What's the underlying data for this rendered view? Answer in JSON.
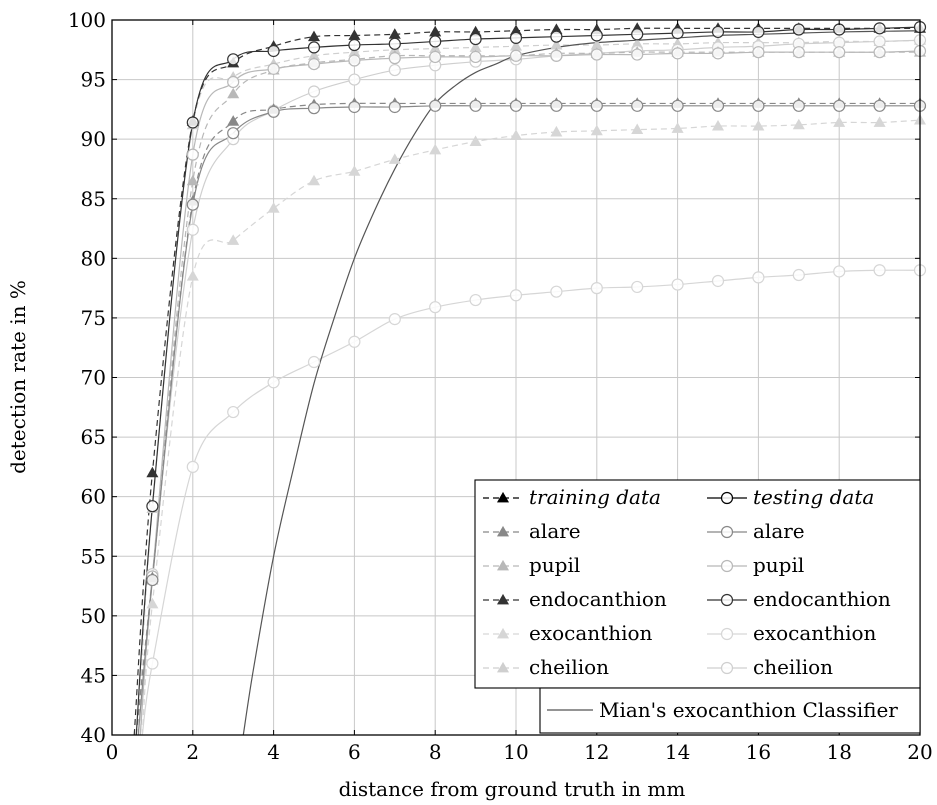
{
  "chart_data": {
    "type": "line",
    "title": "",
    "xlabel": "distance from ground truth in mm",
    "ylabel": "detection rate in %",
    "xlim": [
      0,
      20
    ],
    "ylim": [
      40,
      100
    ],
    "x_ticks": [
      0,
      2,
      4,
      6,
      8,
      10,
      12,
      14,
      16,
      18,
      20
    ],
    "y_ticks": [
      40,
      45,
      50,
      55,
      60,
      65,
      70,
      75,
      80,
      85,
      90,
      95,
      100
    ],
    "grid": true,
    "legend_position": "bottom-right",
    "legend_headers": {
      "training": "training data",
      "testing": "testing data"
    },
    "colors": {
      "endocanthion": "#333333",
      "alare": "#888888",
      "pupil": "#b8b8b8",
      "exocanthion": "#d6d6d6",
      "cheilion": "#cfcfcf",
      "mian": "#555555"
    },
    "series": [
      {
        "name": "alare",
        "group": "training",
        "style": "dashed",
        "marker": "triangle",
        "color_key": "alare",
        "x": [
          0.6,
          1,
          2,
          3,
          4,
          5,
          6,
          7,
          8,
          9,
          10,
          11,
          12,
          13,
          14,
          15,
          16,
          17,
          18,
          19,
          20
        ],
        "y": [
          40,
          53.2,
          84.8,
          91.5,
          92.5,
          92.9,
          93.0,
          93.0,
          93.0,
          93.0,
          93.0,
          93.0,
          93.0,
          93.0,
          93.0,
          93.0,
          93.0,
          93.0,
          93.0,
          93.0,
          93.0
        ]
      },
      {
        "name": "pupil",
        "group": "training",
        "style": "dashed",
        "marker": "triangle",
        "color_key": "pupil",
        "x": [
          0.7,
          1,
          2,
          3,
          4,
          5,
          6,
          7,
          8,
          9,
          10,
          11,
          12,
          13,
          14,
          15,
          16,
          17,
          18,
          19,
          20
        ],
        "y": [
          40,
          53.0,
          86.5,
          93.8,
          95.8,
          96.4,
          96.7,
          97.0,
          97.0,
          97.0,
          97.0,
          97.2,
          97.2,
          97.3,
          97.3,
          97.3,
          97.3,
          97.3,
          97.3,
          97.3,
          97.3
        ]
      },
      {
        "name": "endocanthion",
        "group": "training",
        "style": "dashed",
        "marker": "triangle",
        "color_key": "endocanthion",
        "x": [
          0.55,
          1,
          2,
          3,
          4,
          5,
          6,
          7,
          8,
          9,
          10,
          11,
          12,
          13,
          14,
          15,
          16,
          17,
          18,
          19,
          20
        ],
        "y": [
          40,
          62.0,
          91.5,
          96.4,
          97.8,
          98.6,
          98.7,
          98.8,
          99.0,
          99.0,
          99.1,
          99.2,
          99.2,
          99.3,
          99.3,
          99.3,
          99.3,
          99.3,
          99.3,
          99.3,
          99.3
        ]
      },
      {
        "name": "exocanthion",
        "group": "training",
        "style": "dashed",
        "marker": "triangle",
        "color_key": "exocanthion",
        "x": [
          0.75,
          1,
          2,
          3,
          4,
          5,
          6,
          7,
          8,
          9,
          10,
          11,
          12,
          13,
          14,
          15,
          16,
          17,
          18,
          19,
          20
        ],
        "y": [
          40,
          51.0,
          78.5,
          81.5,
          84.2,
          86.5,
          87.3,
          88.3,
          89.1,
          89.8,
          90.3,
          90.6,
          90.7,
          90.8,
          90.9,
          91.1,
          91.1,
          91.2,
          91.4,
          91.4,
          91.6
        ]
      },
      {
        "name": "cheilion",
        "group": "training",
        "style": "dashed",
        "marker": "triangle",
        "color_key": "cheilion",
        "x": [
          0.65,
          1,
          2,
          3,
          4,
          5,
          6,
          7,
          8,
          9,
          10,
          11,
          12,
          13,
          14,
          15,
          16,
          17,
          18,
          19,
          20
        ],
        "y": [
          40,
          59.0,
          91.2,
          95.2,
          96.3,
          97.0,
          97.3,
          97.5,
          97.6,
          97.7,
          97.8,
          97.9,
          97.9,
          98.0,
          98.0,
          98.1,
          98.1,
          98.1,
          98.2,
          98.2,
          98.3
        ]
      },
      {
        "name": "alare",
        "group": "testing",
        "style": "solid",
        "marker": "circle",
        "color_key": "alare",
        "x": [
          0.65,
          1,
          2,
          3,
          4,
          5,
          6,
          7,
          8,
          9,
          10,
          11,
          12,
          13,
          14,
          15,
          16,
          17,
          18,
          19,
          20
        ],
        "y": [
          40,
          53.0,
          84.5,
          90.5,
          92.3,
          92.6,
          92.7,
          92.7,
          92.8,
          92.8,
          92.8,
          92.8,
          92.8,
          92.8,
          92.8,
          92.8,
          92.8,
          92.8,
          92.8,
          92.8,
          92.8
        ]
      },
      {
        "name": "pupil",
        "group": "testing",
        "style": "solid",
        "marker": "circle",
        "color_key": "pupil",
        "x": [
          0.7,
          1,
          2,
          3,
          4,
          5,
          6,
          7,
          8,
          9,
          10,
          11,
          12,
          13,
          14,
          15,
          16,
          17,
          18,
          19,
          20
        ],
        "y": [
          40,
          53.3,
          88.7,
          94.8,
          95.9,
          96.3,
          96.6,
          96.8,
          96.9,
          96.9,
          97.0,
          97.0,
          97.1,
          97.1,
          97.2,
          97.2,
          97.3,
          97.3,
          97.3,
          97.3,
          97.4
        ]
      },
      {
        "name": "endocanthion",
        "group": "testing",
        "style": "solid",
        "marker": "circle",
        "color_key": "endocanthion",
        "x": [
          0.6,
          1,
          2,
          3,
          4,
          5,
          6,
          7,
          8,
          9,
          10,
          11,
          12,
          13,
          14,
          15,
          16,
          17,
          18,
          19,
          20
        ],
        "y": [
          40,
          59.2,
          91.4,
          96.7,
          97.4,
          97.7,
          97.9,
          98.0,
          98.2,
          98.4,
          98.5,
          98.6,
          98.7,
          98.8,
          98.9,
          99.0,
          99.0,
          99.2,
          99.2,
          99.3,
          99.4
        ]
      },
      {
        "name": "exocanthion",
        "group": "testing",
        "style": "solid",
        "marker": "circle",
        "color_key": "exocanthion",
        "x": [
          0.75,
          1,
          2,
          3,
          4,
          5,
          6,
          7,
          8,
          9,
          10,
          11,
          12,
          13,
          14,
          15,
          16,
          17,
          18,
          19,
          20
        ],
        "y": [
          40,
          46.0,
          62.5,
          67.1,
          69.6,
          71.3,
          73.0,
          74.9,
          75.9,
          76.5,
          76.9,
          77.2,
          77.5,
          77.6,
          77.8,
          78.1,
          78.4,
          78.6,
          78.9,
          79.0,
          79.0
        ]
      },
      {
        "name": "cheilion",
        "group": "testing",
        "style": "solid",
        "marker": "circle",
        "color_key": "cheilion",
        "x": [
          0.7,
          1,
          2,
          3,
          4,
          5,
          6,
          7,
          8,
          9,
          10,
          11,
          12,
          13,
          14,
          15,
          16,
          17,
          18,
          19,
          20
        ],
        "y": [
          40,
          53.5,
          82.4,
          90.0,
          92.4,
          94.0,
          95.0,
          95.8,
          96.2,
          96.5,
          96.7,
          97.0,
          97.2,
          97.4,
          97.5,
          97.7,
          97.8,
          98.0,
          98.1,
          98.2,
          98.3
        ]
      },
      {
        "name": "Mian's exocanthion Classifier",
        "group": "other",
        "style": "solid",
        "marker": "none",
        "color_key": "mian",
        "x": [
          3.25,
          3.5,
          4,
          4.5,
          5,
          5.5,
          6,
          6.5,
          7,
          7.5,
          8,
          8.5,
          9,
          9.5,
          10,
          11,
          12,
          13,
          14,
          15,
          16,
          17,
          18,
          19,
          20
        ],
        "y": [
          40,
          45.5,
          55.0,
          62.5,
          69.5,
          75.0,
          80.0,
          84.0,
          87.5,
          90.5,
          93.0,
          94.5,
          95.6,
          96.3,
          97.0,
          97.7,
          98.1,
          98.3,
          98.5,
          98.7,
          98.8,
          98.9,
          99.0,
          99.05,
          99.1
        ]
      }
    ]
  }
}
